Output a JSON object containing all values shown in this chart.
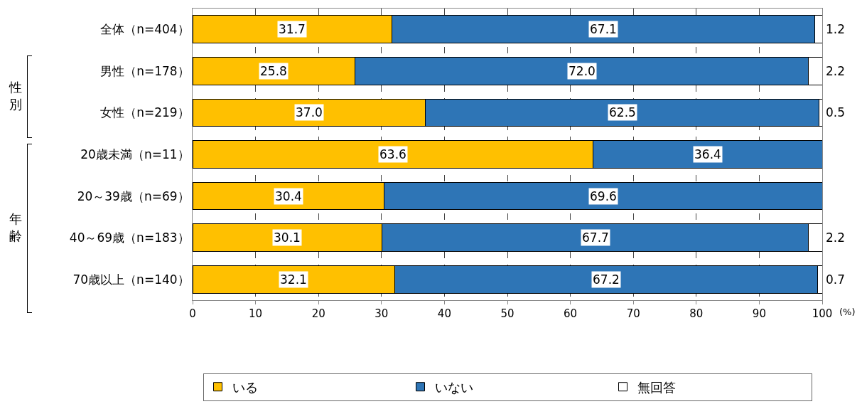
{
  "chart_data": {
    "type": "bar",
    "orientation": "horizontal",
    "stacked": true,
    "categories": [
      "全体（n=404）",
      "男性（n=178）",
      "女性（n=219）",
      "20歳未満（n=11）",
      "20～39歳（n=69）",
      "40～69歳（n=183）",
      "70歳以上（n=140）"
    ],
    "series": [
      {
        "name": "いる",
        "color": "#ffc000",
        "values": [
          31.7,
          25.8,
          37.0,
          63.6,
          30.4,
          30.1,
          32.1
        ],
        "value_labels": [
          "31.7",
          "25.8",
          "37.0",
          "63.6",
          "30.4",
          "30.1",
          "32.1"
        ]
      },
      {
        "name": "いない",
        "color": "#2e75b6",
        "values": [
          67.1,
          72.0,
          62.5,
          36.4,
          69.6,
          67.7,
          67.2
        ],
        "value_labels": [
          "67.1",
          "72.0",
          "62.5",
          "36.4",
          "69.6",
          "67.7",
          "67.2"
        ]
      },
      {
        "name": "無回答",
        "color": "#ffffff",
        "values": [
          1.2,
          2.2,
          0.5,
          null,
          null,
          2.2,
          0.7
        ],
        "value_labels": [
          "1.2",
          "2.2",
          "0.5",
          null,
          null,
          "2.2",
          "0.7"
        ]
      }
    ],
    "xlim": [
      0,
      100
    ],
    "xticks": [
      0,
      10,
      20,
      30,
      40,
      50,
      60,
      70,
      80,
      90,
      100
    ],
    "xlabel": "(%)",
    "grid": "x",
    "legend": "bottom",
    "annotations": [
      "性別",
      "年齢"
    ]
  }
}
